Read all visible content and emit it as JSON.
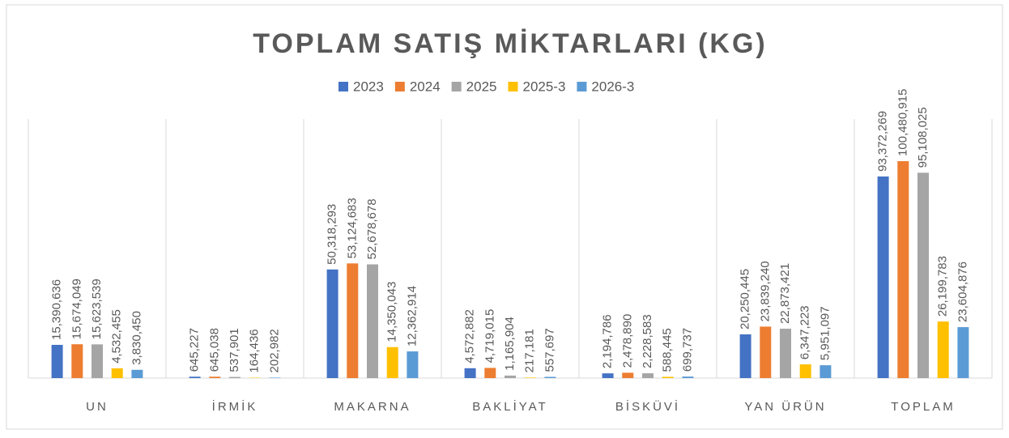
{
  "chart_data": {
    "type": "bar",
    "title": "TOPLAM SATIŞ MİKTARLARI (KG)",
    "categories": [
      "UN",
      "İRMİK",
      "MAKARNA",
      "BAKLİYAT",
      "BİSKÜVİ",
      "YAN ÜRÜN",
      "TOPLAM"
    ],
    "series": [
      {
        "name": "2023",
        "color": "#4472c4",
        "values": [
          15390636,
          645227,
          50318293,
          4572882,
          2194786,
          20250445,
          93372269
        ],
        "value_labels": [
          "15,390,636",
          "645,227",
          "50,318,293",
          "4,572,882",
          "2,194,786",
          "20,250,445",
          "93,372,269"
        ]
      },
      {
        "name": "2024",
        "color": "#ed7d31",
        "values": [
          15674049,
          645038,
          53124683,
          4719015,
          2478890,
          23839240,
          100480915
        ],
        "value_labels": [
          "15,674,049",
          "645,038",
          "53,124,683",
          "4,719,015",
          "2,478,890",
          "23,839,240",
          "100,480,915"
        ]
      },
      {
        "name": "2025",
        "color": "#a5a5a5",
        "values": [
          15623539,
          537901,
          52678678,
          1165904,
          2228583,
          22873421,
          95108025
        ],
        "value_labels": [
          "15,623,539",
          "537,901",
          "52,678,678",
          "1,165,904",
          "2,228,583",
          "22,873,421",
          "95,108,025"
        ]
      },
      {
        "name": "2025-3",
        "color": "#ffc000",
        "values": [
          4532455,
          164436,
          14350043,
          217181,
          588445,
          6347223,
          26199783
        ],
        "value_labels": [
          "4,532,455",
          "164,436",
          "14,350,043",
          "217,181",
          "588,445",
          "6,347,223",
          "26,199,783"
        ]
      },
      {
        "name": "2026-3",
        "color": "#5b9bd5",
        "values": [
          3830450,
          202982,
          12362914,
          557697,
          699737,
          5951097,
          23604876
        ],
        "value_labels": [
          "3,830,450",
          "202,982",
          "12,362,914",
          "557,697",
          "699,737",
          "5,951,097",
          "23,604,876"
        ]
      }
    ],
    "ylim": [
      0,
      120000000
    ]
  }
}
